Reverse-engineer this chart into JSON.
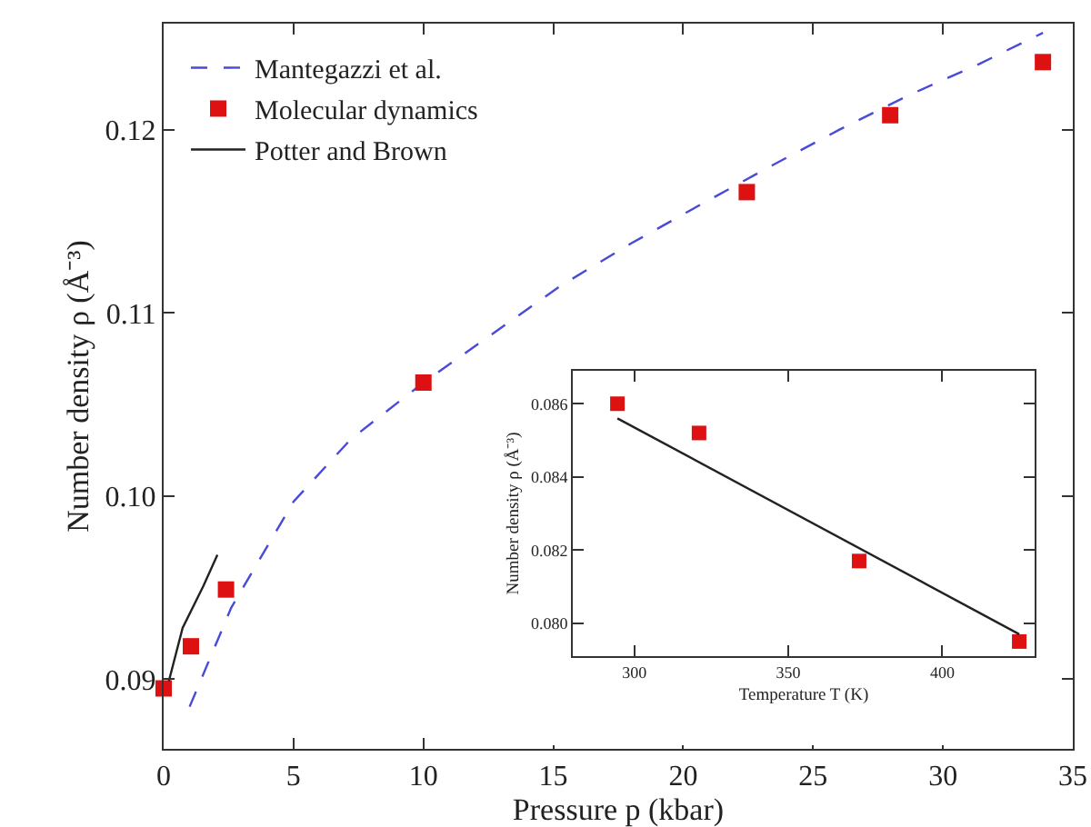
{
  "chart_data": [
    {
      "type": "scatter",
      "xlabel": "Pressure p (kbar)",
      "ylabel": "Number density ρ (Å⁻³)",
      "xlim": [
        0,
        35
      ],
      "xticks": [
        0,
        5,
        10,
        15,
        20,
        25,
        30,
        35
      ],
      "ylim": [
        0.0862,
        0.1258
      ],
      "yticks": [
        {
          "value": 0.09,
          "label": "0.09"
        },
        {
          "value": 0.1,
          "label": "0.10"
        },
        {
          "value": 0.11,
          "label": "0.11"
        },
        {
          "value": 0.12,
          "label": "0.12"
        }
      ],
      "grid": false,
      "legend": "top left",
      "series": [
        {
          "name": "Mantegazzi et al.",
          "type": "line",
          "line_style": "dashed",
          "color": "#4a4ad8",
          "x": [
            1.0,
            2.6,
            5.0,
            7.2,
            10,
            12.6,
            15.3,
            18,
            20.65,
            23.35,
            26.0,
            28.7,
            31.4,
            33.85
          ],
          "values": [
            0.0885,
            0.0939,
            0.0997,
            0.1031,
            0.1062,
            0.1088,
            0.1115,
            0.1138,
            0.1159,
            0.118,
            0.12,
            0.1219,
            0.1236,
            0.1253
          ]
        },
        {
          "name": "Molecular dynamics",
          "type": "scatter",
          "marker": "square",
          "color": "#dd1111",
          "x": [
            0,
            1.05,
            2.4,
            10.0,
            22.45,
            27.97,
            33.85
          ],
          "values": [
            0.0895,
            0.0918,
            0.0949,
            0.1062,
            0.1166,
            0.1208,
            0.1237
          ]
        },
        {
          "name": "Potter and Brown",
          "type": "line",
          "line_style": "solid",
          "color": "#222222",
          "x": [
            0.2,
            0.73,
            1.53,
            2.07
          ],
          "values": [
            0.0899,
            0.0928,
            0.0951,
            0.0968
          ]
        }
      ]
    },
    {
      "type": "scatter",
      "xlabel": "Temperature T (K)",
      "ylabel": "Number density ρ (Å⁻³)",
      "xlim": [
        280,
        430
      ],
      "xticks": [
        300,
        350,
        400
      ],
      "ylim": [
        0.0791,
        0.0869
      ],
      "yticks": [
        {
          "value": 0.08,
          "label": "0.080"
        },
        {
          "value": 0.082,
          "label": "0.082"
        },
        {
          "value": 0.084,
          "label": "0.084"
        },
        {
          "value": 0.086,
          "label": "0.086"
        }
      ],
      "grid": false,
      "legend": false,
      "series": [
        {
          "type": "scatter",
          "marker": "square",
          "color": "#dd1111",
          "x": [
            294.5,
            321,
            373,
            425
          ],
          "values": [
            0.086,
            0.0852,
            0.0817,
            0.0795
          ]
        },
        {
          "type": "line",
          "line_style": "solid",
          "color": "#222222",
          "x": [
            294.5,
            425
          ],
          "values": [
            0.0856,
            0.0797
          ]
        }
      ]
    }
  ]
}
